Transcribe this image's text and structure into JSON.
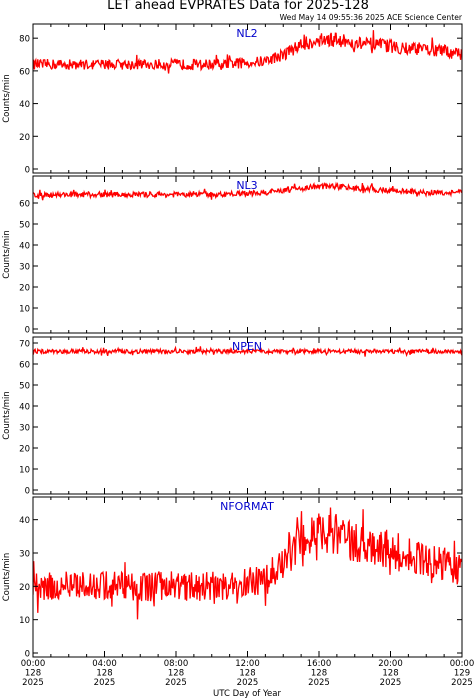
{
  "title": "LET ahead EVPRATES Data for 2025-128",
  "timestamp": "Wed May 14 09:55:36 2025 ACE Science Center",
  "xlabel": "UTC Day of Year",
  "ylabel": "Counts/min",
  "colors": {
    "series": "#ff0000",
    "panel_label": "#0000cc",
    "axes": "#000000",
    "background": "#ffffff"
  },
  "x_ticks": [
    {
      "time": "00:00",
      "doy": "128",
      "year": "2025"
    },
    {
      "time": "04:00",
      "doy": "128",
      "year": "2025"
    },
    {
      "time": "08:00",
      "doy": "128",
      "year": "2025"
    },
    {
      "time": "12:00",
      "doy": "128",
      "year": "2025"
    },
    {
      "time": "16:00",
      "doy": "128",
      "year": "2025"
    },
    {
      "time": "20:00",
      "doy": "128",
      "year": "2025"
    },
    {
      "time": "00:00",
      "doy": "129",
      "year": "2025"
    }
  ],
  "chart_data": [
    {
      "type": "line",
      "name": "NL2",
      "xlim": [
        0,
        24
      ],
      "ylim": [
        0,
        85
      ],
      "yticks": [
        "0",
        "20",
        "40",
        "60",
        "80"
      ],
      "x": [
        0,
        2,
        4,
        6,
        8,
        10,
        11,
        12,
        13,
        14,
        15,
        16,
        17,
        18,
        19,
        20,
        21,
        22,
        23,
        24
      ],
      "values": [
        64,
        64,
        64,
        64,
        64,
        64,
        64.5,
        65,
        66,
        70,
        76,
        79,
        79,
        77,
        76,
        75,
        74,
        73,
        72,
        70
      ]
    },
    {
      "type": "line",
      "name": "NL3",
      "xlim": [
        0,
        24
      ],
      "ylim": [
        0,
        70
      ],
      "yticks": [
        "0",
        "10",
        "20",
        "30",
        "40",
        "50",
        "60"
      ],
      "x": [
        0,
        2,
        4,
        6,
        8,
        10,
        12,
        13,
        14,
        15,
        16,
        17,
        18,
        20,
        22,
        24
      ],
      "values": [
        64,
        64,
        64,
        64,
        64,
        64,
        64.5,
        65,
        66,
        67,
        68,
        68,
        67,
        66,
        65,
        65
      ]
    },
    {
      "type": "line",
      "name": "NPEN",
      "xlim": [
        0,
        24
      ],
      "ylim": [
        0,
        70
      ],
      "yticks": [
        "0",
        "10",
        "20",
        "30",
        "40",
        "50",
        "60",
        "70"
      ],
      "x": [
        0,
        4,
        8,
        12,
        16,
        20,
        24
      ],
      "values": [
        66,
        66,
        66,
        66,
        66,
        66,
        66
      ]
    },
    {
      "type": "line",
      "name": "NFORMAT",
      "xlim": [
        0,
        24
      ],
      "ylim": [
        0,
        45
      ],
      "yticks": [
        "0",
        "10",
        "20",
        "30",
        "40"
      ],
      "x": [
        0,
        2,
        4,
        6,
        8,
        10,
        11,
        12,
        13,
        14,
        15,
        16,
        17,
        18,
        19,
        20,
        21,
        22,
        23,
        24
      ],
      "values": [
        20,
        20,
        20,
        20,
        20,
        20,
        20.5,
        21,
        22,
        27,
        34,
        36,
        36,
        33,
        31,
        31,
        29,
        28,
        27,
        25
      ]
    }
  ]
}
